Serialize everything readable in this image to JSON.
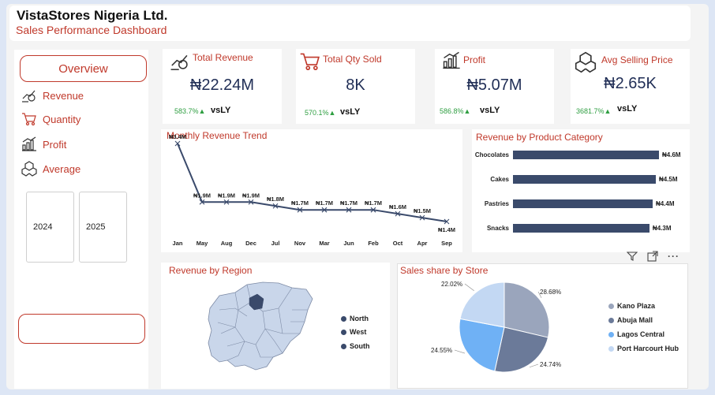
{
  "header": {
    "title": "VistaStores Nigeria Ltd.",
    "subtitle": "Sales Performance Dashboard"
  },
  "sidebar": {
    "overview_label": "Overview",
    "items": [
      {
        "label": "Revenue",
        "icon": "revenue-icon"
      },
      {
        "label": "Quantity",
        "icon": "cart-icon"
      },
      {
        "label": "Profit",
        "icon": "profit-icon"
      },
      {
        "label": "Average",
        "icon": "boxes-icon"
      }
    ],
    "years": [
      "2024",
      "2025"
    ]
  },
  "kpis": [
    {
      "label": "Total Revenue",
      "value": "₦22.24M",
      "change": "583.7%▲",
      "vs": "vsLY",
      "icon": "revenue-icon"
    },
    {
      "label": "Total Qty Sold",
      "value": "8K",
      "change": "570.1%▲",
      "vs": "vsLY",
      "icon": "cart-icon"
    },
    {
      "label": "Profit",
      "value": "₦5.07M",
      "change": "586.8%▲",
      "vs": "vsLY",
      "icon": "profit-icon"
    },
    {
      "label": "Avg Selling Price",
      "value": "₦2.65K",
      "change": "3681.7%▲",
      "vs": "vsLY",
      "icon": "boxes-icon"
    }
  ],
  "chart_data": [
    {
      "type": "line",
      "title": "Monthly Revenue Trend",
      "categories": [
        "Jan",
        "May",
        "Aug",
        "Dec",
        "Jul",
        "Nov",
        "Mar",
        "Jun",
        "Feb",
        "Oct",
        "Apr",
        "Sep"
      ],
      "values": [
        3.4,
        1.9,
        1.9,
        1.9,
        1.8,
        1.7,
        1.7,
        1.7,
        1.7,
        1.6,
        1.5,
        1.4
      ],
      "data_labels": [
        "₦3.4M",
        "₦1.9M",
        "₦1.9M",
        "₦1.9M",
        "₦1.8M",
        "₦1.7M",
        "₦1.7M",
        "₦1.7M",
        "₦1.7M",
        "₦1.6M",
        "₦1.5M",
        "₦1.4M"
      ],
      "color": "#3a4a6b"
    },
    {
      "type": "bar",
      "title": "Revenue by Product Category",
      "orientation": "horizontal",
      "categories": [
        "Chocolates",
        "Cakes",
        "Pastries",
        "Snacks"
      ],
      "values": [
        4.6,
        4.5,
        4.4,
        4.3
      ],
      "data_labels": [
        "₦4.6M",
        "₦4.5M",
        "₦4.4M",
        "₦4.3M"
      ],
      "color": "#3a4a6b"
    },
    {
      "type": "pie",
      "title": "Sales share by Store",
      "categories": [
        "Kano Plaza",
        "Abuja Mall",
        "Lagos Central",
        "Port Harcourt Hub"
      ],
      "values": [
        28.68,
        24.74,
        24.55,
        22.02
      ],
      "data_labels": [
        "28.68%",
        "24.74%",
        "24.55%",
        "22.02%"
      ],
      "colors": [
        "#9aa5bc",
        "#6b7a99",
        "#6fb1f5",
        "#c3d8f3"
      ],
      "legend": "right"
    }
  ],
  "region": {
    "title": "Revenue by Region",
    "legend": [
      "North",
      "West",
      "South"
    ],
    "legend_color": "#3a4a6b",
    "map_color": "#c9d6ea",
    "highlight_color": "#3a4a6b"
  },
  "visual_icons": [
    "filter-icon",
    "focus-mode-icon",
    "more-options-icon"
  ]
}
